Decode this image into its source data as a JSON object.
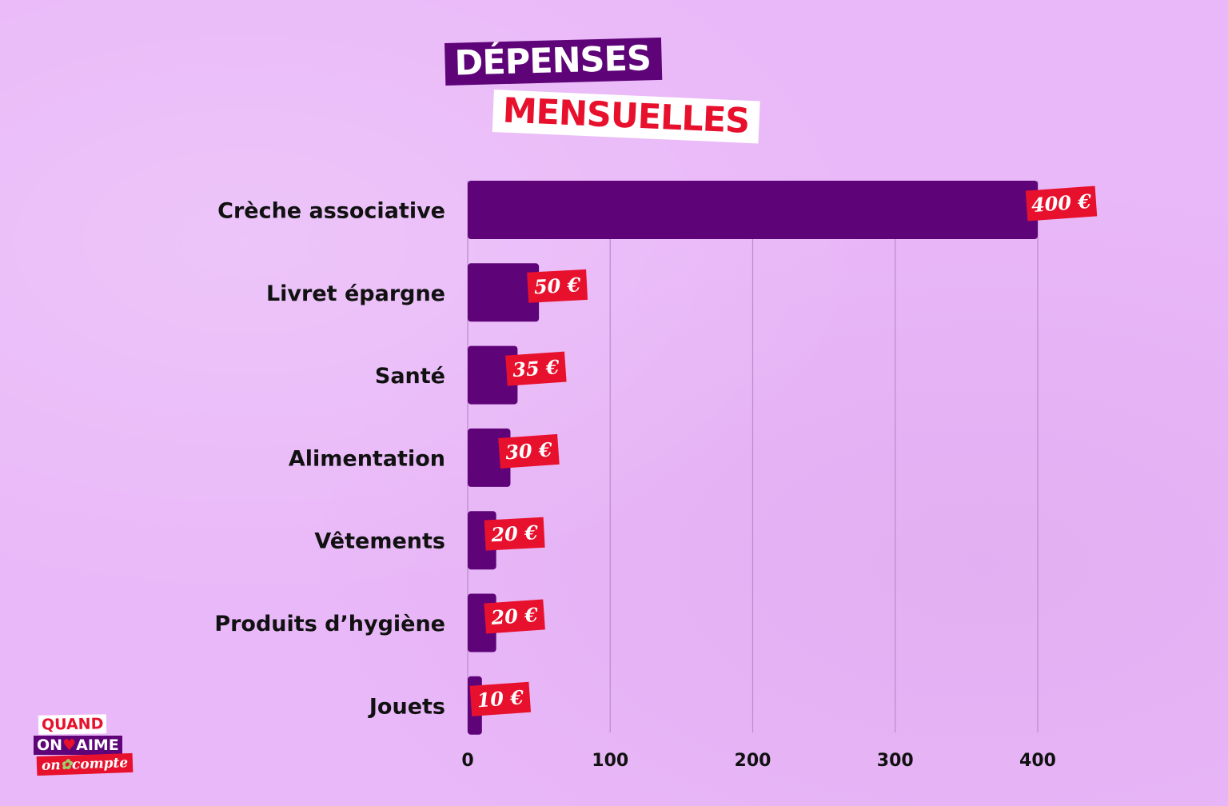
{
  "title": {
    "line1": "DÉPENSES",
    "line2": "MENSUELLES"
  },
  "colors": {
    "background": "#E9B8F8",
    "bar": "#5E0378",
    "label_bg": "#E8112D",
    "title_line1_bg": "#5E0378",
    "title_line2_text": "#E8112D"
  },
  "chart_data": {
    "type": "bar",
    "orientation": "horizontal",
    "categories": [
      "Crèche associative",
      "Livret épargne",
      "Santé",
      "Alimentation",
      "Vêtements",
      "Produits d’hygiène",
      "Jouets"
    ],
    "values": [
      400,
      50,
      35,
      30,
      20,
      20,
      10
    ],
    "value_labels": [
      "400 €",
      "50 €",
      "35 €",
      "30 €",
      "20 €",
      "20 €",
      "10 €"
    ],
    "xlim": [
      0,
      400
    ],
    "ticks": [
      0,
      100,
      200,
      300,
      400
    ],
    "tick_labels": [
      "0",
      "100",
      "200",
      "300",
      "400"
    ],
    "grid": "vertical",
    "legend": "none"
  },
  "logo": {
    "line1": "QUAND",
    "line2_a": "ON",
    "line2_heart": "♥",
    "line2_b": "AIME",
    "line3_a": "on",
    "line3_clover": "✿",
    "line3_b": "compte"
  }
}
